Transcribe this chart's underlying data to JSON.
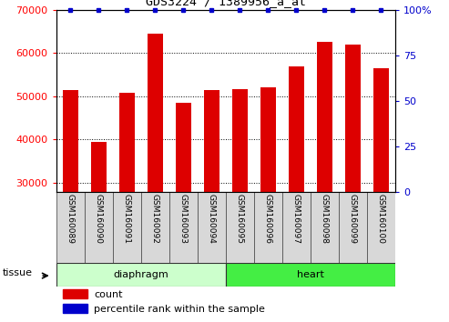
{
  "title": "GDS3224 / 1389956_a_at",
  "samples": [
    "GSM160089",
    "GSM160090",
    "GSM160091",
    "GSM160092",
    "GSM160093",
    "GSM160094",
    "GSM160095",
    "GSM160096",
    "GSM160097",
    "GSM160098",
    "GSM160099",
    "GSM160100"
  ],
  "counts": [
    51500,
    39500,
    50800,
    64500,
    48500,
    51500,
    51700,
    52000,
    57000,
    62500,
    62000,
    56500
  ],
  "groups": [
    "diaphragm",
    "diaphragm",
    "diaphragm",
    "diaphragm",
    "diaphragm",
    "diaphragm",
    "heart",
    "heart",
    "heart",
    "heart",
    "heart",
    "heart"
  ],
  "diaphragm_color": "#ccffcc",
  "heart_color": "#44ee44",
  "bar_color": "#dd0000",
  "dot_color": "#0000cc",
  "ylim_left": [
    28000,
    70000
  ],
  "ylim_right": [
    0,
    100
  ],
  "yticks_left": [
    30000,
    40000,
    50000,
    60000,
    70000
  ],
  "yticks_right": [
    0,
    25,
    50,
    75,
    100
  ],
  "legend_count_label": "count",
  "legend_pct_label": "percentile rank within the sample",
  "tissue_label": "tissue"
}
